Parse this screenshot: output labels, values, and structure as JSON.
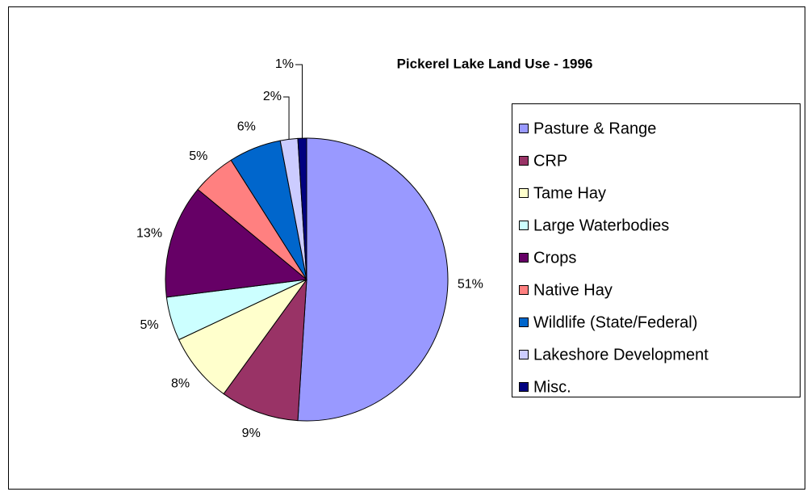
{
  "chart_data": {
    "type": "pie",
    "title": "Pickerel Lake Land Use - 1996",
    "categories": [
      "Pasture & Range",
      "CRP",
      "Tame Hay",
      "Large Waterbodies",
      "Crops",
      "Native Hay",
      "Wildlife (State/Federal)",
      "Lakeshore Development",
      "Misc."
    ],
    "values": [
      51,
      9,
      8,
      5,
      13,
      5,
      6,
      2,
      1
    ],
    "value_labels": [
      "51%",
      "9%",
      "8%",
      "5%",
      "13%",
      "5%",
      "6%",
      "2%",
      "1%"
    ],
    "colors": [
      "#9999ff",
      "#993366",
      "#ffffcc",
      "#ccffff",
      "#660066",
      "#ff8080",
      "#0066cc",
      "#ccccff",
      "#000080"
    ],
    "legend": "right"
  }
}
